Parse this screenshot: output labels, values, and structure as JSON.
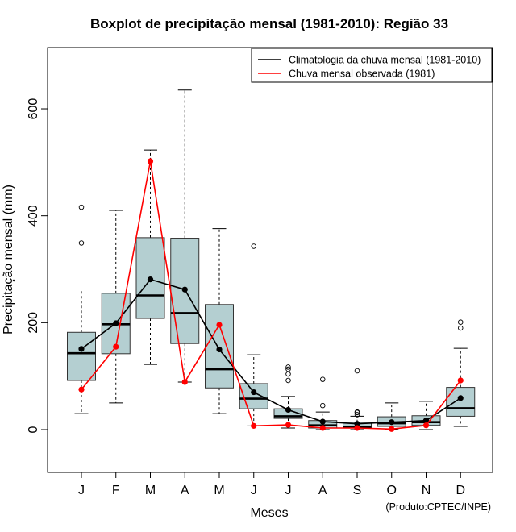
{
  "chart_data": {
    "type": "boxplot",
    "title": "Boxplot de precipitação mensal (1981-2010): Região 33",
    "xlabel": "Meses",
    "ylabel": "Precipitação mensal (mm)",
    "categories": [
      "J",
      "F",
      "M",
      "A",
      "M",
      "J",
      "J",
      "A",
      "S",
      "O",
      "N",
      "D"
    ],
    "ylim": [
      -80,
      710
    ],
    "yticks": [
      0,
      200,
      400,
      600
    ],
    "credit": "(Produto:CPTEC/INPE)",
    "legend": {
      "position": "top-right",
      "entries": [
        {
          "label": "Climatologia da chuva mensal (1981-2010)",
          "color": "#000000"
        },
        {
          "label": "Chuva mensal observada (1981)",
          "color": "#ff0000"
        }
      ]
    },
    "boxes": [
      {
        "month": "J",
        "whisker_low": 30,
        "q1": 92,
        "median": 143,
        "q3": 182,
        "whisker_high": 263,
        "outliers": [
          349,
          416
        ]
      },
      {
        "month": "F",
        "whisker_low": 50,
        "q1": 142,
        "median": 197,
        "q3": 255,
        "whisker_high": 410,
        "outliers": []
      },
      {
        "month": "M",
        "whisker_low": 122,
        "q1": 208,
        "median": 251,
        "q3": 359,
        "whisker_high": 523,
        "outliers": []
      },
      {
        "month": "A",
        "whisker_low": 89,
        "q1": 161,
        "median": 218,
        "q3": 358,
        "whisker_high": 635,
        "outliers": []
      },
      {
        "month": "M",
        "whisker_low": 30,
        "q1": 78,
        "median": 113,
        "q3": 234,
        "whisker_high": 376,
        "outliers": []
      },
      {
        "month": "J",
        "whisker_low": 7,
        "q1": 39,
        "median": 58,
        "q3": 86,
        "whisker_high": 140,
        "outliers": [
          343
        ]
      },
      {
        "month": "J",
        "whisker_low": 3,
        "q1": 21,
        "median": 25,
        "q3": 39,
        "whisker_high": 62,
        "outliers": [
          92,
          104,
          113,
          117
        ]
      },
      {
        "month": "A",
        "whisker_low": 0,
        "q1": 3,
        "median": 8,
        "q3": 17,
        "whisker_high": 33,
        "outliers": [
          45,
          94
        ]
      },
      {
        "month": "S",
        "whisker_low": 0,
        "q1": 3,
        "median": 5,
        "q3": 14,
        "whisker_high": 25,
        "outliers": [
          28,
          32,
          33,
          110
        ]
      },
      {
        "month": "O",
        "whisker_low": 0,
        "q1": 6,
        "median": 12,
        "q3": 24,
        "whisker_high": 50,
        "outliers": []
      },
      {
        "month": "N",
        "whisker_low": 0,
        "q1": 8,
        "median": 14,
        "q3": 26,
        "whisker_high": 53,
        "outliers": []
      },
      {
        "month": "D",
        "whisker_low": 6,
        "q1": 25,
        "median": 40,
        "q3": 79,
        "whisker_high": 152,
        "outliers": [
          190,
          201
        ]
      }
    ],
    "series": [
      {
        "name": "Climatologia da chuva mensal (1981-2010)",
        "color": "#000000",
        "values": [
          151,
          199,
          281,
          262,
          150,
          70,
          37,
          15,
          11,
          14,
          17,
          59
        ]
      },
      {
        "name": "Chuva mensal observada (1981)",
        "color": "#ff0000",
        "values": [
          75,
          155,
          502,
          89,
          196,
          7,
          9,
          3,
          3,
          1,
          8,
          92
        ]
      }
    ],
    "box_fill": "#b4cfd1"
  }
}
